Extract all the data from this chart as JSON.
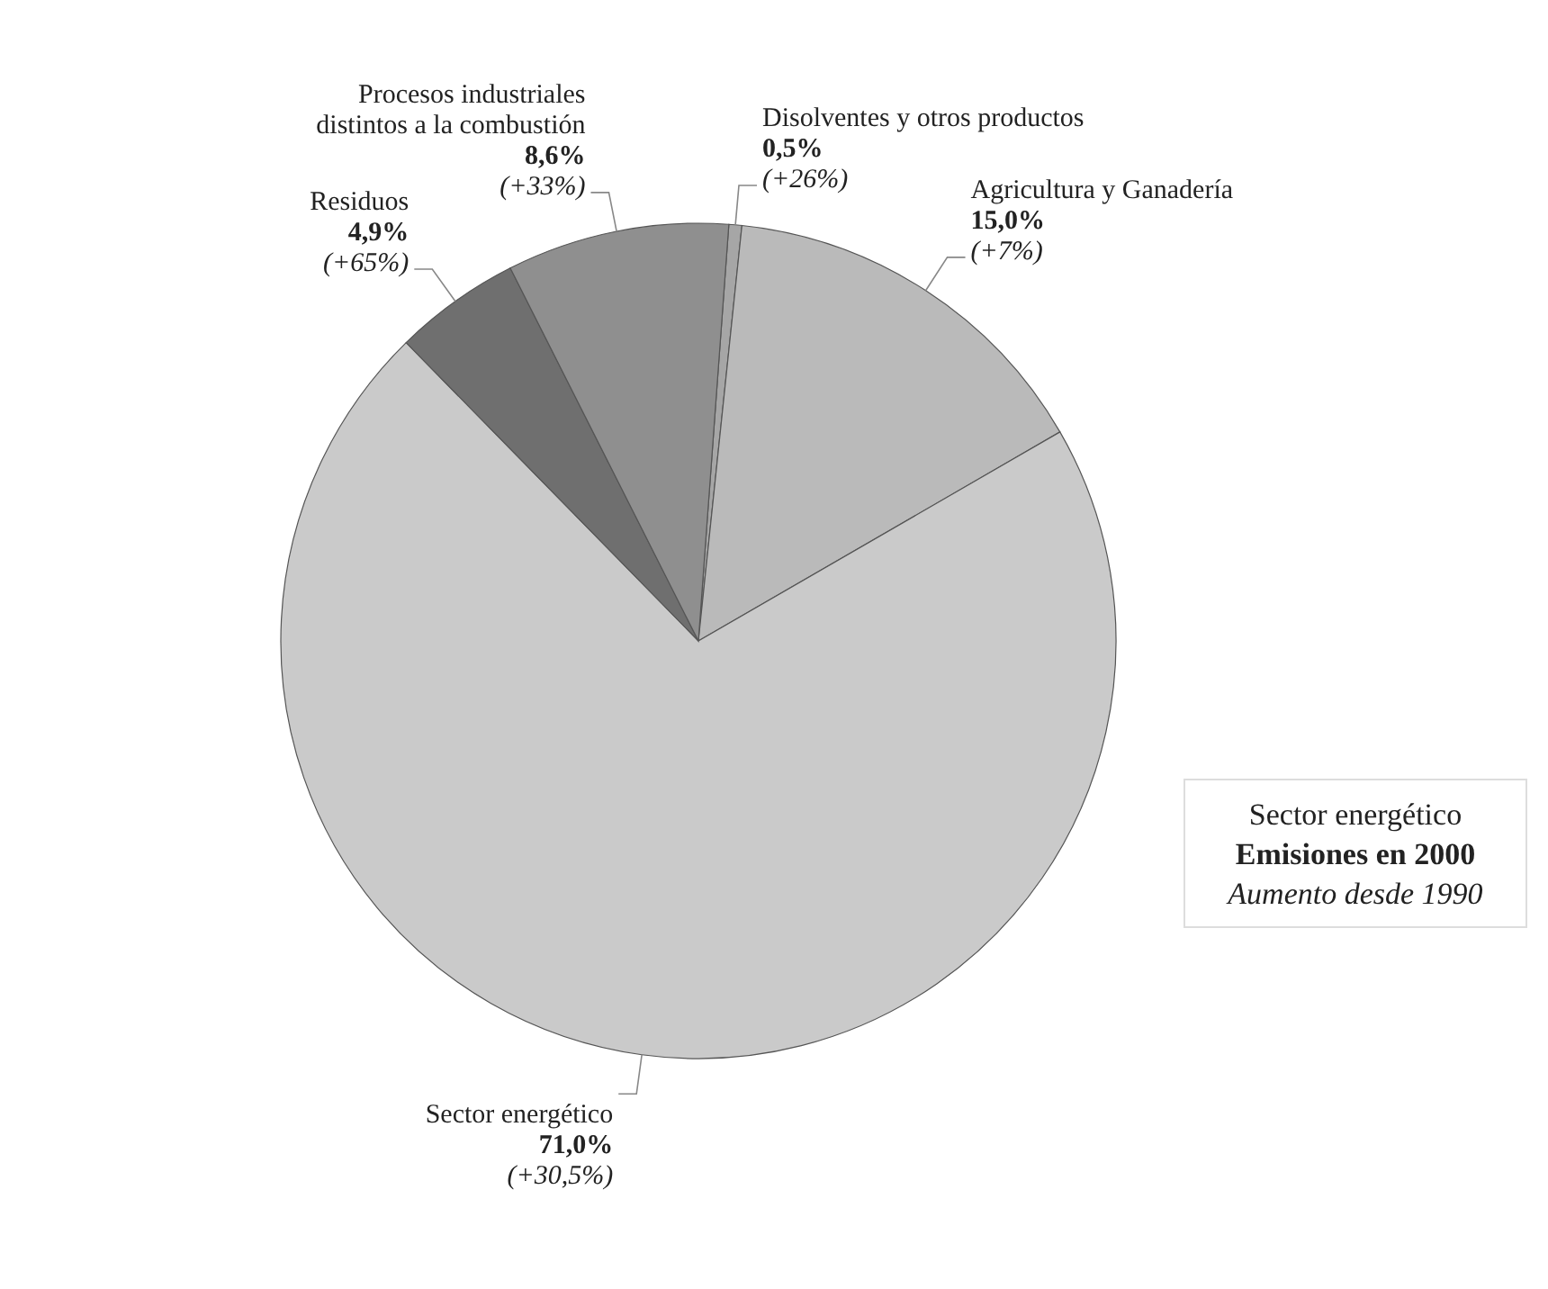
{
  "chart_data": {
    "type": "pie",
    "categories": [
      "Disolventes y otros productos",
      "Agricultura y Ganadería",
      "Sector energético",
      "Residuos",
      "Procesos industriales distintos a la combustión"
    ],
    "values": [
      0.5,
      15.0,
      71.0,
      4.9,
      8.6
    ],
    "value_labels": [
      "0,5%",
      "15,0%",
      "71,0%",
      "4,9%",
      "8,6%"
    ],
    "colors": [
      "#a6a6a6",
      "#bababa",
      "#cacaca",
      "#6f6f6f",
      "#8f8f8f"
    ],
    "annotations": [
      {
        "text": "(+26%)",
        "x": "Disolventes y otros productos"
      },
      {
        "text": "(+7%)",
        "x": "Agricultura y Ganadería"
      },
      {
        "text": "(+30,5%)",
        "x": "Sector energético"
      },
      {
        "text": "(+65%)",
        "x": "Residuos"
      },
      {
        "text": "(+33%)",
        "x": "Procesos industriales distintos a la combustión"
      },
      "Sector energético",
      "Emisiones en 2000",
      "Aumento desde 1990"
    ]
  }
}
